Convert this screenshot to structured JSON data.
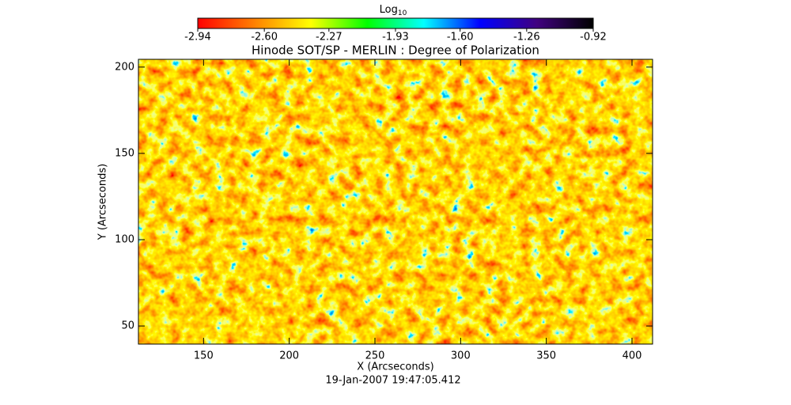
{
  "chart_data": {
    "type": "heatmap",
    "title": "Hinode SOT/SP - MERLIN : Degree of Polarization",
    "x_label": "X (Arcseconds)",
    "y_label": "Y (Arcseconds)",
    "footer": "19-Jan-2007 19:47:05.412",
    "colorbar_title": {
      "base": "Log",
      "subscript": "10"
    },
    "colorbar_lim": [
      -2.94,
      -0.92
    ],
    "colorbar_ticks": [
      -2.94,
      {
        "value": -2.6,
        "label": "-2.60"
      },
      -2.27,
      -1.93,
      {
        "value": -1.6,
        "label": "-1.60"
      },
      -1.26,
      -0.92
    ],
    "colormap": [
      "#ff0000",
      "#ff8000",
      "#ffff00",
      "#00ff00",
      "#00ffff",
      "#0000ff",
      "#400080",
      "#000000"
    ],
    "xlim": [
      112,
      412
    ],
    "xticks": [
      150,
      200,
      250,
      300,
      350,
      400
    ],
    "ylim": [
      39.5,
      204.5
    ],
    "yticks": [
      50,
      100,
      150,
      200
    ]
  }
}
